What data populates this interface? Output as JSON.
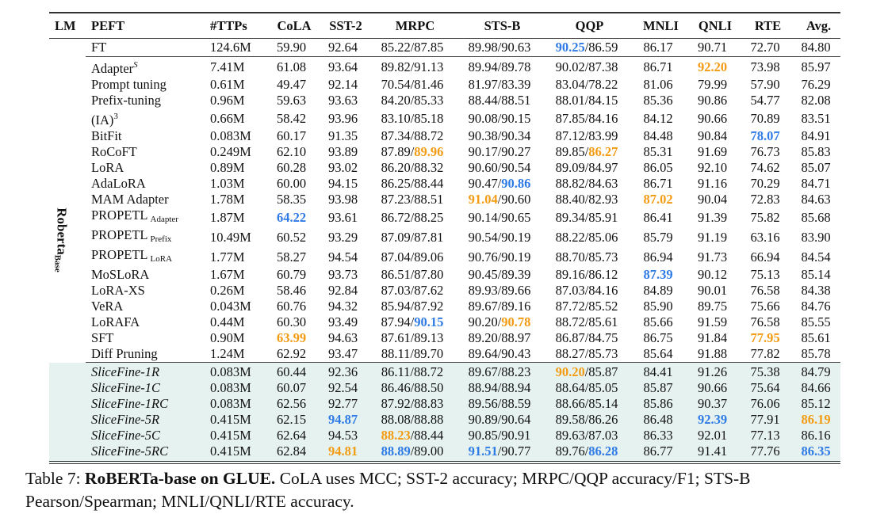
{
  "colors": {
    "best": "#2f7be6",
    "second": "#f39b12",
    "slicefine_bg": "#e6f2ef"
  },
  "headers": [
    "LM",
    "PEFT",
    "#TTPs",
    "CoLA",
    "SST-2",
    "MRPC",
    "STS-B",
    "QQP",
    "MNLI",
    "QNLI",
    "RTE",
    "Avg."
  ],
  "lm_label": {
    "main": "Roberta",
    "sub": "Base"
  },
  "rows": [
    {
      "name": "FT",
      "cells": [
        "124.6M",
        "59.90",
        "92.64",
        "85.22/87.85",
        "89.98/90.63",
        "90.25/86.59",
        "86.17",
        "90.71",
        "72.70",
        "84.80"
      ],
      "marks": {
        "5.0": "best"
      }
    },
    {
      "name": "Adapter",
      "sup": "S",
      "cells": [
        "7.41M",
        "61.08",
        "93.64",
        "89.82/91.13",
        "89.94/89.78",
        "90.02/87.38",
        "86.71",
        "92.20",
        "73.98",
        "85.97"
      ],
      "marks": {
        "7.0": "second"
      }
    },
    {
      "name": "Prompt tuning",
      "cells": [
        "0.61M",
        "49.47",
        "92.14",
        "70.54/81.46",
        "81.97/83.39",
        "83.04/78.22",
        "81.06",
        "79.99",
        "57.90",
        "76.29"
      ]
    },
    {
      "name": "Prefix-tuning",
      "cells": [
        "0.96M",
        "59.63",
        "93.63",
        "84.20/85.33",
        "88.44/88.51",
        "88.01/84.15",
        "85.36",
        "90.86",
        "54.77",
        "82.08"
      ]
    },
    {
      "name": "(IA)",
      "sup": "3",
      "cells": [
        "0.66M",
        "58.42",
        "93.96",
        "83.10/85.18",
        "90.08/90.15",
        "87.85/84.16",
        "84.12",
        "90.66",
        "70.89",
        "83.51"
      ]
    },
    {
      "name": "BitFit",
      "cells": [
        "0.083M",
        "60.17",
        "91.35",
        "87.34/88.72",
        "90.38/90.34",
        "87.12/83.99",
        "84.48",
        "90.84",
        "78.07",
        "84.91"
      ],
      "marks": {
        "8.0": "best"
      }
    },
    {
      "name": "RoCoFT",
      "cells": [
        "0.249M",
        "62.10",
        "93.89",
        "87.89/89.96",
        "90.17/90.27",
        "89.85/86.27",
        "85.31",
        "91.69",
        "76.73",
        "85.83"
      ],
      "marks": {
        "3.1": "second",
        "5.1": "second"
      }
    },
    {
      "name": "LoRA",
      "cells": [
        "0.89M",
        "60.28",
        "93.02",
        "86.20/88.32",
        "90.60/90.54",
        "89.09/84.97",
        "86.05",
        "92.10",
        "74.62",
        "85.07"
      ]
    },
    {
      "name": "AdaLoRA",
      "cells": [
        "1.03M",
        "60.00",
        "94.15",
        "86.25/88.44",
        "90.47/90.86",
        "88.82/84.63",
        "86.71",
        "91.16",
        "70.29",
        "84.71"
      ],
      "marks": {
        "4.1": "best"
      }
    },
    {
      "name": "MAM Adapter",
      "cells": [
        "1.78M",
        "58.35",
        "93.98",
        "87.23/88.51",
        "91.04/90.60",
        "88.40/82.93",
        "87.02",
        "90.04",
        "72.83",
        "84.63"
      ],
      "marks": {
        "4.0": "second",
        "6.0": "second"
      }
    },
    {
      "name": "PROPETL",
      "sub": "Adapter",
      "cells": [
        "1.87M",
        "64.22",
        "93.61",
        "86.72/88.25",
        "90.14/90.65",
        "89.34/85.91",
        "86.41",
        "91.39",
        "75.82",
        "85.68"
      ],
      "marks": {
        "1.0": "best"
      }
    },
    {
      "name": "PROPETL",
      "sub": "Prefix",
      "cells": [
        "10.49M",
        "60.52",
        "93.29",
        "87.09/87.81",
        "90.54/90.19",
        "88.22/85.06",
        "85.79",
        "91.19",
        "63.16",
        "83.90"
      ]
    },
    {
      "name": "PROPETL",
      "sub": "LoRA",
      "cells": [
        "1.77M",
        "58.27",
        "94.54",
        "87.04/89.06",
        "90.76/90.19",
        "88.70/85.73",
        "86.94",
        "91.73",
        "66.94",
        "84.54"
      ]
    },
    {
      "name": "MoSLoRA",
      "cells": [
        "1.67M",
        "60.79",
        "93.73",
        "86.51/87.80",
        "90.45/89.39",
        "89.16/86.12",
        "87.39",
        "90.12",
        "75.13",
        "85.14"
      ],
      "marks": {
        "6.0": "best"
      }
    },
    {
      "name": "LoRA-XS",
      "cells": [
        "0.26M",
        "58.46",
        "92.84",
        "87.03/87.62",
        "89.93/89.66",
        "87.03/84.16",
        "84.89",
        "90.01",
        "76.58",
        "84.38"
      ]
    },
    {
      "name": "VeRA",
      "cells": [
        "0.043M",
        "60.76",
        "94.32",
        "85.94/87.92",
        "89.67/89.16",
        "87.72/85.52",
        "85.90",
        "89.75",
        "75.66",
        "84.76"
      ]
    },
    {
      "name": "LoRAFA",
      "cells": [
        "0.44M",
        "60.30",
        "93.49",
        "87.94/90.15",
        "90.20/90.78",
        "88.72/85.61",
        "85.66",
        "91.59",
        "76.58",
        "85.55"
      ],
      "marks": {
        "3.1": "best",
        "4.1": "second"
      }
    },
    {
      "name": "SFT",
      "cells": [
        "0.90M",
        "63.99",
        "94.63",
        "87.61/89.13",
        "89.20/88.97",
        "86.87/84.75",
        "86.75",
        "91.84",
        "77.95",
        "85.61"
      ],
      "marks": {
        "1.0": "second",
        "8.0": "second"
      }
    },
    {
      "name": "Diff Pruning",
      "cells": [
        "1.24M",
        "62.92",
        "93.47",
        "88.11/89.70",
        "89.64/90.43",
        "88.27/85.73",
        "85.64",
        "91.88",
        "77.82",
        "85.78"
      ]
    },
    {
      "name": "SliceFine-1R",
      "italic": true,
      "cells": [
        "0.083M",
        "60.44",
        "92.36",
        "86.11/88.72",
        "89.67/88.23",
        "90.20/85.87",
        "84.41",
        "91.26",
        "75.38",
        "84.79"
      ],
      "marks": {
        "5.0": "second"
      }
    },
    {
      "name": "SliceFine-1C",
      "italic": true,
      "cells": [
        "0.083M",
        "60.07",
        "92.54",
        "86.46/88.50",
        "88.94/88.94",
        "88.64/85.05",
        "85.87",
        "90.66",
        "75.64",
        "84.66"
      ]
    },
    {
      "name": "SliceFine-1RC",
      "italic": true,
      "cells": [
        "0.083M",
        "62.56",
        "92.77",
        "87.92/88.83",
        "89.56/88.59",
        "88.66/85.14",
        "85.86",
        "90.37",
        "76.06",
        "85.12"
      ]
    },
    {
      "name": "SliceFine-5R",
      "italic": true,
      "cells": [
        "0.415M",
        "62.15",
        "94.87",
        "88.08/88.88",
        "90.89/90.64",
        "89.58/86.26",
        "86.48",
        "92.39",
        "77.91",
        "86.19"
      ],
      "marks": {
        "2.0": "best",
        "7.0": "best",
        "9.0": "second"
      }
    },
    {
      "name": "SliceFine-5C",
      "italic": true,
      "cells": [
        "0.415M",
        "62.64",
        "94.53",
        "88.23/88.44",
        "90.85/90.91",
        "89.63/87.03",
        "86.33",
        "92.01",
        "77.13",
        "86.16"
      ],
      "marks": {
        "3.0": "second"
      }
    },
    {
      "name": "SliceFine-5RC",
      "italic": true,
      "cells": [
        "0.415M",
        "62.84",
        "94.81",
        "88.89/89.00",
        "91.51/90.77",
        "89.76/86.28",
        "86.77",
        "91.41",
        "77.76",
        "86.35"
      ],
      "marks": {
        "2.0": "second",
        "3.0": "best",
        "4.0": "best",
        "5.1": "best",
        "9.0": "best"
      }
    }
  ],
  "caption": {
    "label": "Table 7:",
    "title": "RoBERTa-base on GLUE.",
    "text": "CoLA uses MCC; SST-2 accuracy; MRPC/QQP accuracy/F1; STS-B Pearson/Spearman; MNLI/QNLI/RTE accuracy."
  }
}
